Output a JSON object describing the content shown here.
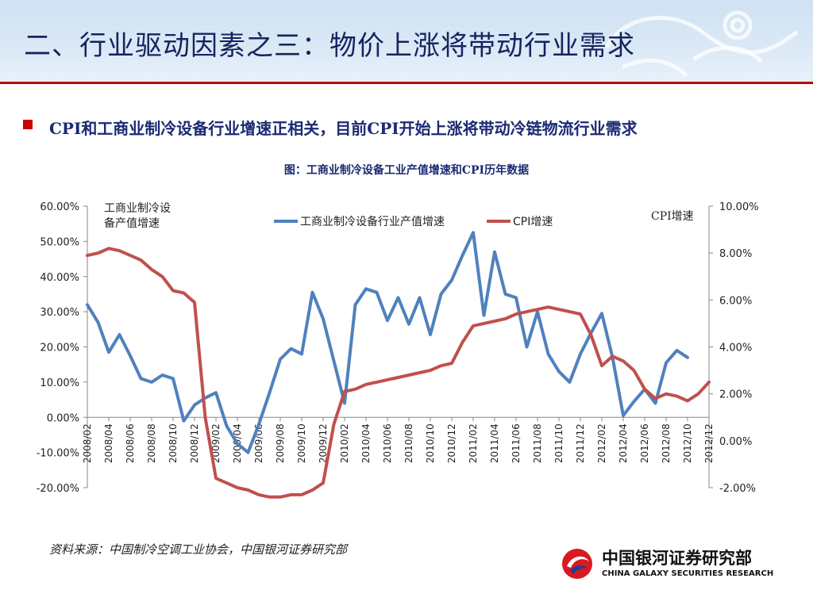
{
  "slide": {
    "title": "二、行业驱动因素之三：物价上涨将带动行业需求",
    "bullet": "CPI和工商业制冷设备行业增速正相关，目前CPI开始上涨将带动冷链物流行业需求",
    "caption": "图：工商业制冷设备工业产值增速和CPI历年数据",
    "source": "资料来源：中国制冷空调工业协会，中国银河证券研究部"
  },
  "logo": {
    "name_cn": "中国银河证券研究部",
    "name_en": "CHINA GALAXY SECURITIES RESEARCH"
  },
  "colors": {
    "title": "#16235f",
    "accent_red": "#c00000",
    "series_blue": "#4f81bd",
    "series_red": "#c0504d"
  },
  "chart_data": {
    "type": "line",
    "y_left_label_lines": [
      "工商业制冷设",
      "备产值增速"
    ],
    "y_right_label": "CPI增速",
    "legend_position": "top-center",
    "left_axis": {
      "ylim": [
        -20,
        60
      ],
      "ticks": [
        "60.00%",
        "50.00%",
        "40.00%",
        "30.00%",
        "20.00%",
        "10.00%",
        "0.00%",
        "-10.00%",
        "-20.00%"
      ]
    },
    "right_axis": {
      "ylim": [
        -2,
        10
      ],
      "ticks": [
        "10.00%",
        "8.00%",
        "6.00%",
        "4.00%",
        "2.00%",
        "0.00%",
        "-2.00%"
      ]
    },
    "x_tick_labels": [
      "2008/02",
      "2008/04",
      "2008/06",
      "2008/08",
      "2008/10",
      "2008/12",
      "2009/02",
      "2009/04",
      "2009/06",
      "2009/08",
      "2009/10",
      "2009/12",
      "2010/02",
      "2010/04",
      "2010/06",
      "2010/08",
      "2010/10",
      "2010/12",
      "2011/02",
      "2011/04",
      "2011/06",
      "2011/08",
      "2011/10",
      "2011/12",
      "2012/02",
      "2012/04",
      "2012/06",
      "2012/08",
      "2012/10",
      "2012/12"
    ],
    "series": [
      {
        "name": "工商业制冷设备行业产值增速",
        "axis": "left",
        "x": [
          "2008/02",
          "2008/03",
          "2008/04",
          "2008/05",
          "2008/06",
          "2008/07",
          "2008/08",
          "2008/09",
          "2008/10",
          "2008/11",
          "2008/12",
          "2009/01",
          "2009/02",
          "2009/03",
          "2009/04",
          "2009/05",
          "2009/06",
          "2009/07",
          "2009/08",
          "2009/09",
          "2009/10",
          "2009/11",
          "2009/12",
          "2010/01",
          "2010/02",
          "2010/03",
          "2010/04",
          "2010/05",
          "2010/06",
          "2010/07",
          "2010/08",
          "2010/09",
          "2010/10",
          "2010/11",
          "2010/12",
          "2011/01",
          "2011/02",
          "2011/03",
          "2011/04",
          "2011/05",
          "2011/06",
          "2011/07",
          "2011/08",
          "2011/09",
          "2011/10",
          "2011/11",
          "2011/12",
          "2012/01",
          "2012/02",
          "2012/03",
          "2012/04",
          "2012/05",
          "2012/06",
          "2012/07",
          "2012/08",
          "2012/09",
          "2012/10"
        ],
        "values": [
          32,
          27,
          18.5,
          23.5,
          17.5,
          11,
          10,
          12,
          11,
          -1,
          3.5,
          5.5,
          7,
          -2.5,
          -7.5,
          -10,
          -2,
          7,
          16.5,
          19.5,
          18,
          35.5,
          28,
          16,
          4,
          32,
          36.5,
          35.5,
          27.5,
          34,
          26.5,
          34,
          23.5,
          35,
          39,
          46,
          52.5,
          29,
          47,
          35,
          34,
          20,
          30,
          18,
          13,
          10,
          18,
          24,
          29.5,
          17,
          0.5,
          4.5,
          8,
          4,
          15.5,
          19,
          17
        ]
      },
      {
        "name": "CPI增速",
        "axis": "right",
        "x": [
          "2008/02",
          "2008/03",
          "2008/04",
          "2008/05",
          "2008/06",
          "2008/07",
          "2008/08",
          "2008/09",
          "2008/10",
          "2008/11",
          "2008/12",
          "2009/01",
          "2009/02",
          "2009/03",
          "2009/04",
          "2009/05",
          "2009/06",
          "2009/07",
          "2009/08",
          "2009/09",
          "2009/10",
          "2009/11",
          "2009/12",
          "2010/01",
          "2010/02",
          "2010/03",
          "2010/04",
          "2010/05",
          "2010/06",
          "2010/07",
          "2010/08",
          "2010/09",
          "2010/10",
          "2010/11",
          "2010/12",
          "2011/01",
          "2011/02",
          "2011/03",
          "2011/04",
          "2011/05",
          "2011/06",
          "2011/07",
          "2011/08",
          "2011/09",
          "2011/10",
          "2011/11",
          "2011/12",
          "2012/01",
          "2012/02",
          "2012/03",
          "2012/04",
          "2012/05",
          "2012/06",
          "2012/07",
          "2012/08",
          "2012/09",
          "2012/10",
          "2012/11",
          "2012/12"
        ],
        "values": [
          7.9,
          8.0,
          8.2,
          8.1,
          7.9,
          7.7,
          7.3,
          7.0,
          6.4,
          6.3,
          5.9,
          1.0,
          -1.6,
          -1.8,
          -2.0,
          -2.1,
          -2.3,
          -2.4,
          -2.4,
          -2.3,
          -2.3,
          -2.1,
          -1.8,
          0.7,
          2.1,
          2.2,
          2.4,
          2.5,
          2.6,
          2.7,
          2.8,
          2.9,
          3.0,
          3.2,
          3.3,
          4.2,
          4.9,
          5.0,
          5.1,
          5.2,
          5.4,
          5.5,
          5.6,
          5.7,
          5.6,
          5.5,
          5.4,
          4.5,
          3.2,
          3.6,
          3.4,
          3.0,
          2.2,
          1.8,
          2.0,
          1.9,
          1.7,
          2.0,
          2.5
        ]
      }
    ]
  }
}
